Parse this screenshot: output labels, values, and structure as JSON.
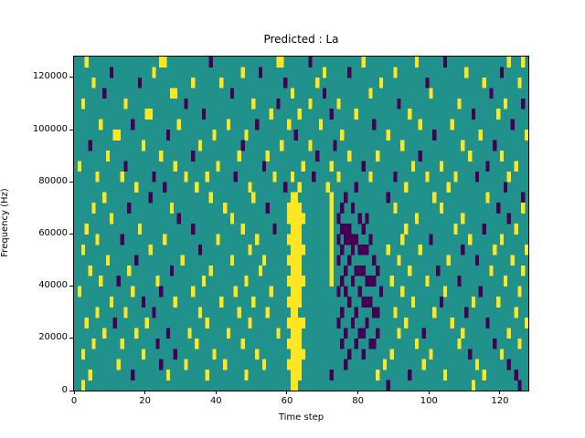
{
  "chart_data": {
    "type": "heatmap",
    "title": "Predicted : La",
    "xlabel": "Time step",
    "ylabel": "Frequency (Hz)",
    "xlim": [
      0,
      128
    ],
    "ylim": [
      0,
      128000
    ],
    "x_ticks": [
      0,
      20,
      40,
      60,
      80,
      100,
      120
    ],
    "y_ticks": [
      0,
      20000,
      40000,
      60000,
      80000,
      100000,
      120000
    ],
    "grid_cols": 128,
    "grid_rows": 32,
    "cell_x_step": 1,
    "cell_y_step": 4000,
    "legend": "none",
    "grid": "off",
    "colormap": {
      "name": "viridis-3level",
      "mid_teal": "#21918c",
      "high_yellow": "#fde725",
      "low_purple": "#440154"
    },
    "encoding": {
      ".": "mid (teal background)",
      "y": "high (yellow)",
      "p": "low (purple)"
    },
    "notable_features": [
      "dense yellow vertical band around time steps 60-64 from ~0 Hz to ~72000 Hz",
      "thin yellow vertical line at time step ~72 from ~40000 Hz to ~76000 Hz",
      "cluster of purple cells around time steps 74-85 between ~12000 and ~60000 Hz",
      "sparse random yellow and purple cells elsewhere on teal background"
    ],
    "rows_top_to_bottom": [
      [
        "...y............",
        "........yy......",
        "......p.........",
        ".........yy.....",
        "..p.............",
        ".y..............",
        "y.......p.......",
        "..........y...y."
      ],
      [
        "..........p.....",
        "......y.........",
        "...............y",
        "....p...........",
        "......y......p..",
        "..........y.....",
        "..............y.",
        "........p......."
      ],
      [
        ".....y..........",
        "..p.............",
        ".y.......y......",
        "...........p....",
        "....y...........",
        "......y.........",
        "...p............",
        "...y.........y.."
      ],
      [
        "........p.......",
        "...........yy...",
        "............p...",
        ".............y..",
        "......p.........",
        "...y............",
        "....y...........",
        ".....p.........."
      ],
      [
        "..y...........y.",
        "...............p",
        "................",
        "..y......p......",
        "..y.......y.....",
        "...........p....",
        "............y...",
        ".........y....p."
      ],
      [
        "................",
        "....yy..........",
        "....p...........",
        ".......y.......y",
        "........p......y",
        "..............y.",
        "................",
        "p......y........"
      ],
      [
        ".......y........",
        "p............y..",
        "...........y....",
        "...p........y...",
        ".....y..........",
        "....p...........",
        ".y........y.....",
        "...........p...."
      ],
      [
        "...........yy...",
        "..........p.....",
        ".......y........",
        "y.............p.",
        "...........y....",
        "........y.......",
        ".....p..........",
        "..y............y"
      ],
      [
        "....p...........",
        "...y............",
        "...y...........p",
        "..........y.....",
        "..y......p......",
        "............y...",
        ".............y..",
        "......p........."
      ],
      [
        ".........y......",
        "........y.......",
        ".p............y.",
        "......y.........",
        "....p........y..",
        ".....y..........",
        ".p.............y",
        "........y......."
      ],
      [
        ".y............p.",
        "............y...",
        "........y.......",
        ".....p..........",
        "y.......y.......",
        ".p.............y",
        ".......y........",
        "....p.......y..."
      ],
      [
        "......y......y..",
        "......p........y",
        ".....y.......p..",
        "........y....y..",
        "...p......y.....",
        "...y......p.....",
        "...y.......y....",
        ".p........y....."
      ],
      [
        "................",
        ".y.......p......",
        "..y.............",
        ".y.........p...y",
        ".......y.......p",
        ".............y..",
        ".........y......",
        ".........p......"
      ],
      [
        "........y.......",
        ".....p..........",
        "......y.........",
        "..y..........yy.",
        "........y...p...",
        "........p.......",
        ".....y..........",
        "....y.........p."
      ],
      [
        ".....y.........p",
        "...........y....",
        "..........y.....",
        "......p.....yyyy",
        "........y..p..p.",
        "..........y.....",
        ".......y........",
        ".......p......y."
      ],
      [
        "..........y.....",
        ".............p..",
        "............y...",
        "............yyyy",
        "y.......y.p.....",
        "p.p.............",
        "y............y..",
        "..........p....."
      ],
      [
        "...y............",
        "..y.............",
        ".p.............y",
        "........p....yyy",
        "........y..ppp..",
        ".p...........y..",
        "...........y....",
        "...p........y..."
      ],
      [
        "......y......p..",
        ".........y......",
        "........y.......",
        "...y........yyyy",
        "........y.p.pppp",
        "...p........y...",
        "....p..........y",
        "........y......."
      ],
      [
        "..y.............",
        ".....y..........",
        "...p............",
        ".y...........yyy",
        "y.......y..p..p.",
        "ppp.....y.......",
        ".y...........p..",
        "......y........y"
      ],
      [
        ".........y......",
        ".p............y.",
        "............y...",
        ".....y......yyyy",
        "........y.p..p..",
        "....p......y....",
        ".........y......",
        ".p.........y...."
      ],
      [
        "....y..........y",
        "...........p....",
        "......y.........",
        "....y........yyy",
        "........y...p..p",
        "pp...p........y.",
        "......p.........",
        ".....y........y."
      ],
      [
        ".......y....p...",
        ".......y........",
        "....y...........",
        "y...........yyyy",
        "y.......y..p..p.",
        "..ppp....y......",
        "...y........p...",
        ".........y......"
      ],
      [
        ".y..............",
        "y.......p.......",
        ".y...........y..",
        ".......y.....yyy",
        "..........p.p...",
        "p.....p.....y...",
        "........y.......",
        "..p..........y.."
      ],
      [
        "..........y.....",
        "...p........y...",
        ".........y......",
        "..y.........yyyy",
        ".............p..",
        ".ppp...........y",
        ".......p........",
        "y......y........"
      ],
      [
        "......y.......y.",
        "......p.........",
        "...y..........y.",
        "......y......yy.",
        "...........p...p",
        "....pp....y.....",
        ".....y........p.",
        "............y..."
      ],
      [
        "...y.......p....",
        "....y...........",
        ".....y..........",
        ".y..........yyyy",
        "y.........p...p.",
        "..p..........y..",
        "..........y.....",
        "....p..........y"
      ],
      [
        "........y.......",
        ".y........p.....",
        "y..........y....",
        ".........y...yyy",
        "............p...",
        "pp...p.....y....",
        "..p..........y..",
        "..........y....."
      ],
      [
        ".....y.......y..",
        ".......p........",
        "..y............y",
        "............yyyy",
        "...........p...p",
        "...pp...........",
        "y...........y...",
        "......p......y.."
      ],
      [
        "..y.............",
        "...y........p...",
        ".......y........",
        "...y.........yyy",
        "y............p..",
        ".p.......y......",
        "....y..........p",
        "........y......."
      ],
      [
        "............y...",
        "........p......y",
        "..........y.....",
        ".....y......yyyy",
        "............p...",
        ".......y........",
        "..y.............",
        ".y........p....."
      ],
      [
        "....y...........",
        "p.........y.....",
        ".....y..........",
        "y............yyy",
        "........p.......",
        ".....y........p.",
        "........y.......",
        "...y........p..."
      ],
      [
        "..y.............",
        "................",
        "................",
        ".............yy.",
        "................",
        "........p.......",
        "................",
        "y............p.."
      ]
    ]
  }
}
